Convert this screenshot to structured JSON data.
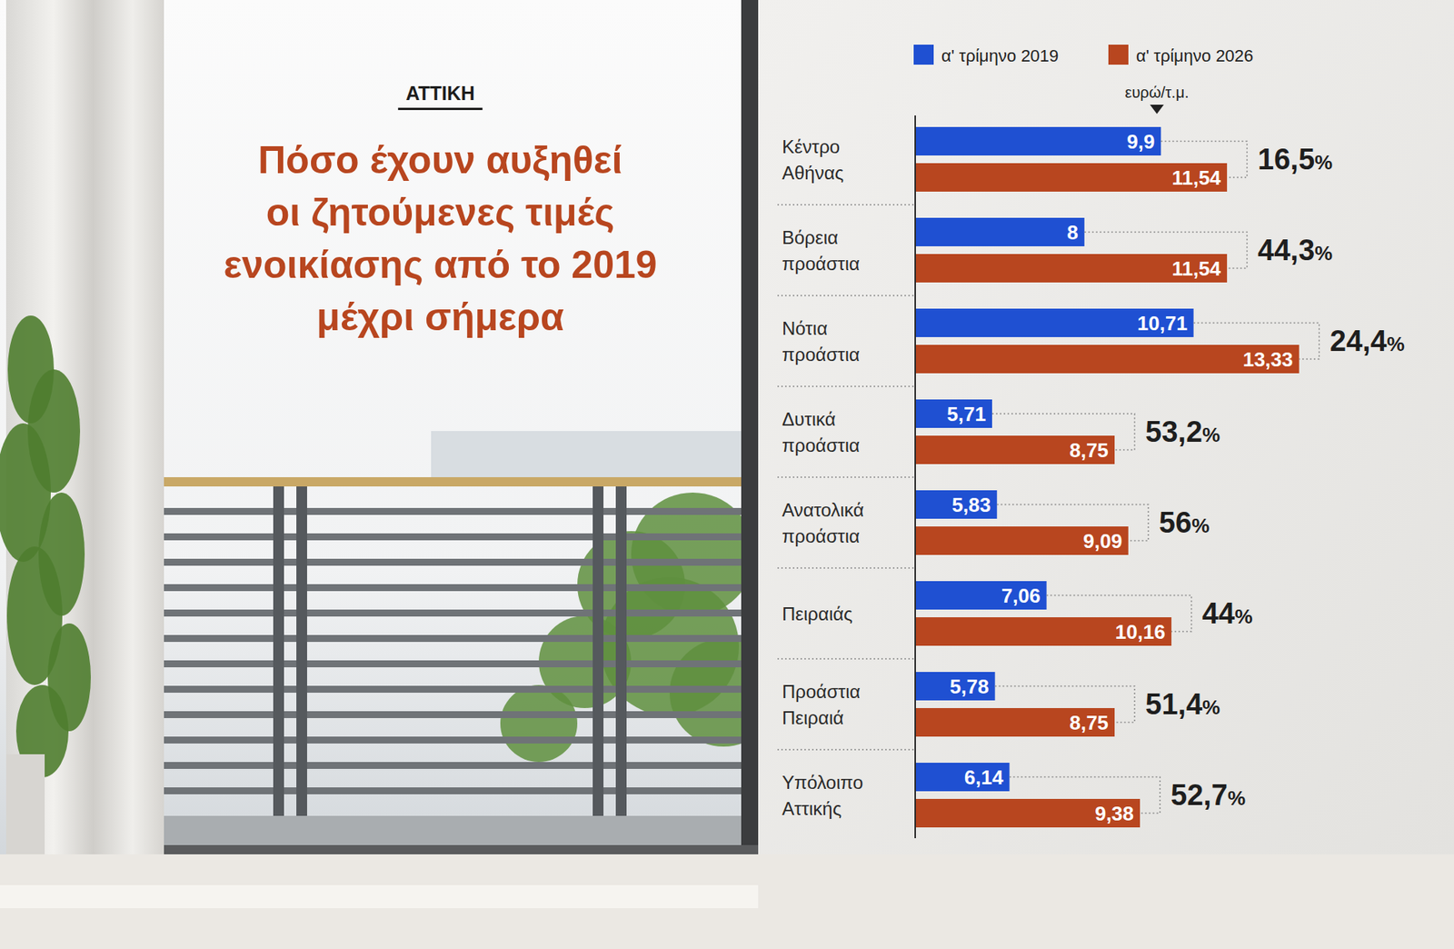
{
  "chart_data": {
    "type": "bar",
    "orientation": "horizontal",
    "subtitle": "ΑΤΤΙΚΗ",
    "title": "Πόσο έχουν αυξηθεί\nοι ζητούμενες τιμές\nενοικίασης από το 2019\nμέχρι σήμερα",
    "xlabel": "ευρώ/τ.μ.",
    "categories": [
      "Κέντρο Αθήνας",
      "Βόρεια προάστια",
      "Νότια προάστια",
      "Δυτικά προάστια",
      "Ανατολικά προάστια",
      "Πειραιάς",
      "Προάστια Πειραιά",
      "Υπόλοιπο Αττικής"
    ],
    "series": [
      {
        "name": "α' τρίμηνο 2019",
        "color": "#1f50d2",
        "values": [
          9.9,
          8,
          10.71,
          5.71,
          5.83,
          7.06,
          5.78,
          6.14
        ],
        "value_labels": [
          "9,9",
          "8",
          "10,71",
          "5,71",
          "5,83",
          "7,06",
          "5,78",
          "6,14"
        ]
      },
      {
        "name": "α' τρίμηνο 2026",
        "color": "#b8461f",
        "values": [
          11.54,
          11.54,
          13.33,
          8.75,
          9.09,
          10.16,
          8.75,
          9.38
        ],
        "value_labels": [
          "11,54",
          "11,54",
          "13,33",
          "8,75",
          "9,09",
          "10,16",
          "8,75",
          "9,38"
        ]
      }
    ],
    "changes": {
      "values": [
        16.5,
        44.3,
        24.4,
        53.2,
        56,
        44,
        51.4,
        52.7
      ],
      "value_labels": [
        "16,5%",
        "44,3%",
        "24,4%",
        "53,2%",
        "56%",
        "44%",
        "51,4%",
        "52,7%"
      ]
    },
    "xlim": [
      3.8,
      14.5
    ],
    "data_labels": true,
    "tick_labels": false,
    "grid": false,
    "legend": "top"
  }
}
